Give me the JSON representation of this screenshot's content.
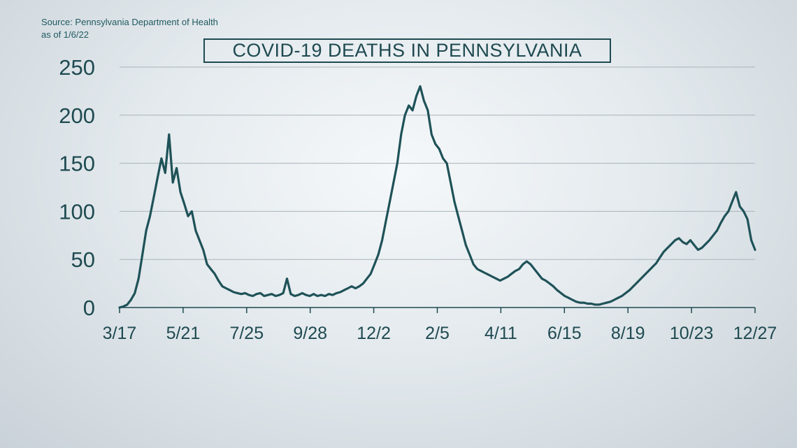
{
  "source": {
    "line1": "Source: Pennsylvania Department of Health",
    "line2": "as of 1/6/22"
  },
  "colors": {
    "line": "#1e5258",
    "grid": "#a9b4ba",
    "text": "#1e4a50"
  },
  "chart_data": {
    "type": "line",
    "title": "COVID-19 DEATHS IN PENNSYLVANIA",
    "xlabel": "",
    "ylabel": "",
    "ylim": [
      0,
      250
    ],
    "yticks": [
      0,
      50,
      100,
      150,
      200,
      250
    ],
    "xticks": [
      "3/17",
      "5/21",
      "7/25",
      "9/28",
      "12/2",
      "2/5",
      "4/11",
      "6/15",
      "8/19",
      "10/23",
      "12/27"
    ],
    "grid": "horizontal",
    "series": [
      {
        "values": [
          0,
          1,
          3,
          8,
          15,
          30,
          55,
          80,
          95,
          115,
          135,
          155,
          140,
          180,
          130,
          145,
          120,
          108,
          95,
          100,
          80,
          70,
          60,
          45,
          40,
          35,
          28,
          22,
          20,
          18,
          16,
          15,
          14,
          15,
          13,
          12,
          14,
          15,
          12,
          13,
          14,
          12,
          13,
          15,
          30,
          14,
          12,
          13,
          15,
          13,
          12,
          14,
          12,
          13,
          12,
          14,
          13,
          15,
          16,
          18,
          20,
          22,
          20,
          22,
          25,
          30,
          35,
          45,
          55,
          70,
          90,
          110,
          130,
          150,
          180,
          200,
          210,
          205,
          220,
          230,
          215,
          205,
          180,
          170,
          165,
          155,
          150,
          130,
          110,
          95,
          80,
          65,
          55,
          45,
          40,
          38,
          36,
          34,
          32,
          30,
          28,
          30,
          32,
          35,
          38,
          40,
          45,
          48,
          45,
          40,
          35,
          30,
          28,
          25,
          22,
          18,
          15,
          12,
          10,
          8,
          6,
          5,
          5,
          4,
          4,
          3,
          3,
          4,
          5,
          6,
          8,
          10,
          12,
          15,
          18,
          22,
          26,
          30,
          34,
          38,
          42,
          46,
          52,
          58,
          62,
          66,
          70,
          72,
          68,
          66,
          70,
          65,
          60,
          62,
          66,
          70,
          75,
          80,
          88,
          95,
          100,
          110,
          120,
          105,
          100,
          92,
          70,
          60
        ]
      }
    ]
  }
}
